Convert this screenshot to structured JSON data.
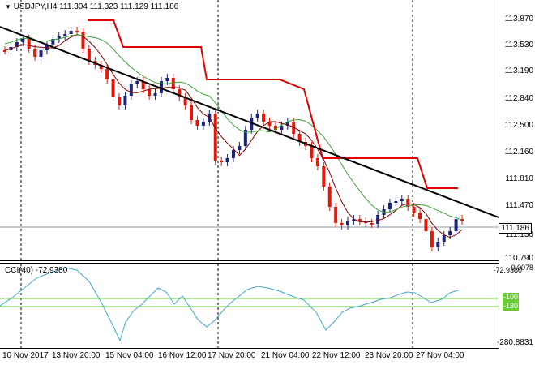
{
  "header": {
    "symbol_timeframe": "USDJPY,H4",
    "ohlc": "111.304 111.323 111.129 111.186"
  },
  "price_axis": [
    "113.870",
    "113.530",
    "113.190",
    "112.840",
    "112.500",
    "112.160",
    "111.810",
    "111.470",
    "111.186",
    "111.130",
    "110.790"
  ],
  "current_price": "111.186",
  "cci": {
    "title": "CCI(40) -72.9380",
    "axis_top": "-72.9380",
    "axis_top2": "0.0078",
    "axis_bottom": "-280.8831",
    "level_upper": "-100",
    "level_lower": "-130"
  },
  "time_axis": [
    "10 Nov 2017",
    "13 Nov 20:00",
    "15 Nov 04:00",
    "16 Nov 12:00",
    "17 Nov 20:00",
    "21 Nov 04:00",
    "22 Nov 12:00",
    "23 Nov 20:00",
    "27 Nov 04:00"
  ],
  "colors": {
    "bull": "#1a237e",
    "bear": "#e3170a",
    "ma_slow": "#3aa33a",
    "ma_fast": "#8b0000",
    "stop_line": "#e00000",
    "trend_line": "#000000",
    "cci_line": "#3fa9c9",
    "cci_levels": "#66cc33",
    "grid": "#000000"
  }
}
